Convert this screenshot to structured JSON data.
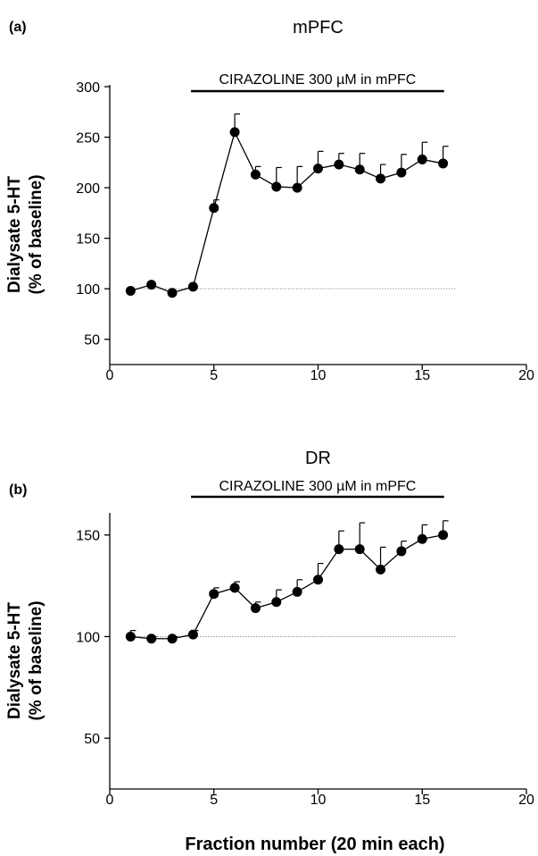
{
  "xlabel": "Fraction number (20 min each)",
  "chart_data": [
    {
      "type": "line",
      "panel_label": "(a)",
      "title": "mPFC",
      "ylabel_lines": [
        "Dialysate 5-HT",
        "(% of baseline)"
      ],
      "treatment_label": "CIRAZOLINE 300 µM in mPFC",
      "treatment_range": [
        4,
        16
      ],
      "baseline": 100,
      "xlim": [
        0,
        20
      ],
      "ylim": [
        25,
        300
      ],
      "xticks": [
        0,
        5,
        10,
        15,
        20
      ],
      "yticks": [
        50,
        100,
        150,
        200,
        250,
        300
      ],
      "grid": false,
      "x": [
        1,
        2,
        3,
        4,
        5,
        6,
        7,
        8,
        9,
        10,
        11,
        12,
        13,
        14,
        15,
        16
      ],
      "series": [
        {
          "values": [
            98,
            104,
            96,
            102,
            180,
            255,
            213,
            201,
            200,
            219,
            223,
            218,
            209,
            215,
            228,
            224
          ],
          "errors": [
            0,
            0,
            0,
            0,
            8,
            18,
            8,
            19,
            21,
            17,
            11,
            16,
            14,
            18,
            17,
            17
          ]
        }
      ]
    },
    {
      "type": "line",
      "panel_label": "(b)",
      "title": "DR",
      "ylabel_lines": [
        "Dialysate 5-HT",
        "(% of baseline)"
      ],
      "treatment_label": "CIRAZOLINE 300 µM in mPFC",
      "treatment_range": [
        4,
        16
      ],
      "baseline": 100,
      "xlim": [
        0,
        20
      ],
      "ylim": [
        25,
        160
      ],
      "xticks": [
        0,
        5,
        10,
        15,
        20
      ],
      "yticks": [
        50,
        100,
        150
      ],
      "grid": false,
      "x": [
        1,
        2,
        3,
        4,
        5,
        6,
        7,
        8,
        9,
        10,
        11,
        12,
        13,
        14,
        15,
        16
      ],
      "series": [
        {
          "values": [
            100,
            99,
            99,
            101,
            121,
            124,
            114,
            117,
            122,
            128,
            143,
            143,
            133,
            142,
            148,
            150
          ],
          "errors": [
            3,
            1,
            1,
            2,
            3,
            3,
            3,
            6,
            6,
            8,
            9,
            13,
            11,
            5,
            7,
            7
          ]
        }
      ]
    }
  ]
}
